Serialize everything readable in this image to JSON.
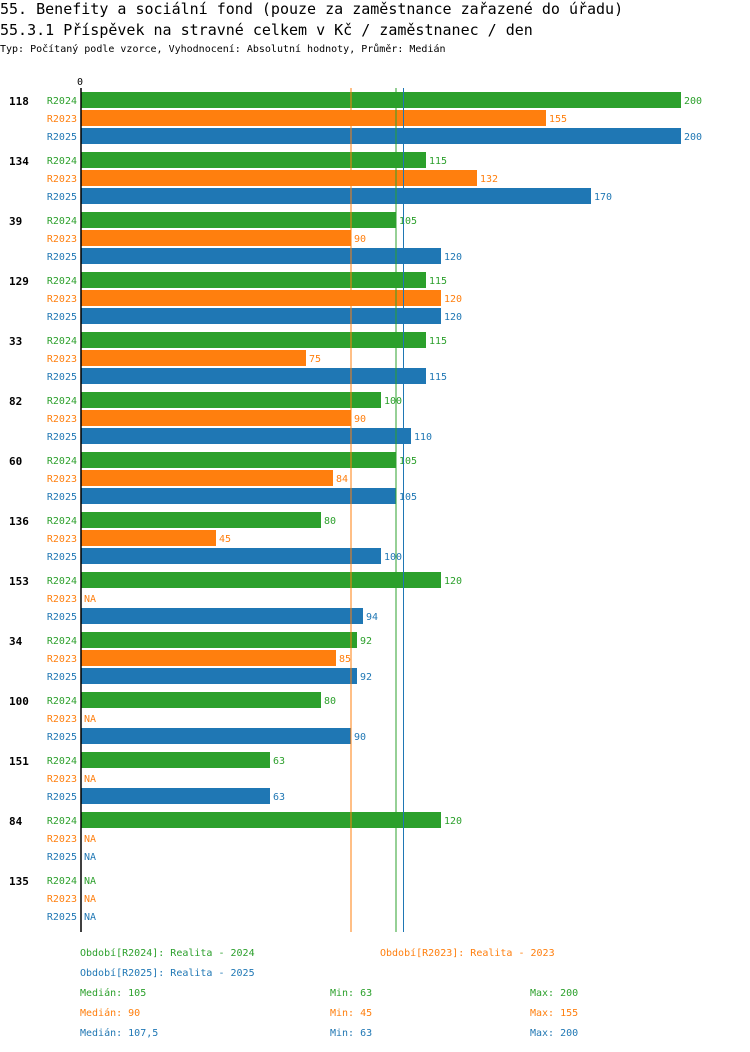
{
  "header": {
    "title_line1": "55. Benefity a sociální fond (pouze za zaměstnance zařazené do úřadu)",
    "title_line2": "55.3.1 Příspěvek na stravné celkem v Kč / zaměstnanec / den",
    "subtitle": "Typ: Počítaný podle vzorce, Vyhodnocení: Absolutní hodnoty, Průměr: Medián"
  },
  "colors": {
    "R2024": "#2ca02c",
    "R2023": "#ff7f0e",
    "R2025": "#1f77b4"
  },
  "chart_data": {
    "type": "bar",
    "orientation": "horizontal",
    "x_axis_label": "0",
    "xlim": [
      0,
      200
    ],
    "series_order": [
      "R2024",
      "R2023",
      "R2025"
    ],
    "na_label": "NA",
    "groups": [
      {
        "id": "118",
        "values": {
          "R2024": 200,
          "R2023": 155,
          "R2025": 200
        }
      },
      {
        "id": "134",
        "values": {
          "R2024": 115,
          "R2023": 132,
          "R2025": 170
        }
      },
      {
        "id": "39",
        "values": {
          "R2024": 105,
          "R2023": 90,
          "R2025": 120
        }
      },
      {
        "id": "129",
        "values": {
          "R2024": 115,
          "R2023": 120,
          "R2025": 120
        }
      },
      {
        "id": "33",
        "values": {
          "R2024": 115,
          "R2023": 75,
          "R2025": 115
        }
      },
      {
        "id": "82",
        "values": {
          "R2024": 100,
          "R2023": 90,
          "R2025": 110
        }
      },
      {
        "id": "60",
        "values": {
          "R2024": 105,
          "R2023": 84,
          "R2025": 105
        }
      },
      {
        "id": "136",
        "values": {
          "R2024": 80,
          "R2023": 45,
          "R2025": 100
        }
      },
      {
        "id": "153",
        "values": {
          "R2024": 120,
          "R2023": null,
          "R2025": 94
        }
      },
      {
        "id": "34",
        "values": {
          "R2024": 92,
          "R2023": 85,
          "R2025": 92
        }
      },
      {
        "id": "100",
        "values": {
          "R2024": 80,
          "R2023": null,
          "R2025": 90
        }
      },
      {
        "id": "151",
        "values": {
          "R2024": 63,
          "R2023": null,
          "R2025": 63
        }
      },
      {
        "id": "84",
        "values": {
          "R2024": 120,
          "R2023": null,
          "R2025": null
        }
      },
      {
        "id": "135",
        "values": {
          "R2024": null,
          "R2023": null,
          "R2025": null
        }
      }
    ],
    "median_lines": {
      "R2024": 105,
      "R2023": 90,
      "R2025": 107.5
    }
  },
  "legend": {
    "period_R2024": "Období[R2024]: Realita - 2024",
    "period_R2023": "Období[R2023]: Realita - 2023",
    "period_R2025": "Období[R2025]: Realita - 2025",
    "stats": [
      {
        "series": "R2024",
        "median": "Medián: 105",
        "min": "Min: 63",
        "max": "Max: 200"
      },
      {
        "series": "R2023",
        "median": "Medián: 90",
        "min": "Min: 45",
        "max": "Max: 155"
      },
      {
        "series": "R2025",
        "median": "Medián: 107,5",
        "min": "Min: 63",
        "max": "Max: 200"
      }
    ]
  }
}
